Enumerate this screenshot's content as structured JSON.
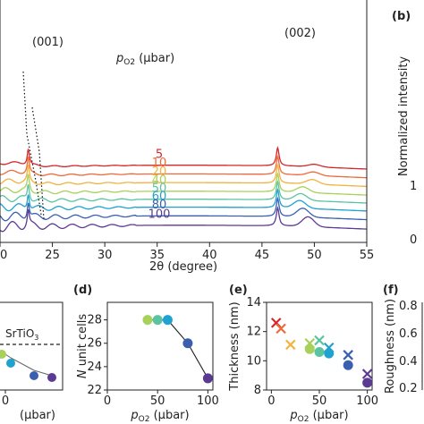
{
  "chart_data": [
    {
      "panel": "a",
      "type": "line",
      "xlabel": "2θ (degree)",
      "ylabel": "",
      "xlim": [
        20,
        55
      ],
      "xticks": [
        20,
        25,
        30,
        35,
        40,
        45,
        50,
        55
      ],
      "legend_title": "p",
      "legend_sub": "O2",
      "legend_unit": " (µbar)",
      "peak_labels": [
        "(001)",
        "(002)"
      ],
      "peak_positions": [
        22.7,
        46.5
      ],
      "series": [
        {
          "name": "5",
          "color": "#d62728",
          "offset": 9.1,
          "satellite": 50.0
        },
        {
          "name": "10",
          "color": "#ef6a3a",
          "offset": 7.9,
          "satellite": 49.9
        },
        {
          "name": "20",
          "color": "#f2b33d",
          "offset": 6.7,
          "satellite": 49.8
        },
        {
          "name": "40",
          "color": "#a7d15a",
          "offset": 5.5,
          "satellite": 48.9
        },
        {
          "name": "50",
          "color": "#5ac4a1",
          "offset": 4.4,
          "satellite": 48.7
        },
        {
          "name": "60",
          "color": "#1fa2d0",
          "offset": 3.3,
          "satellite": 48.6
        },
        {
          "name": "80",
          "color": "#3a5fb0",
          "offset": 2.1,
          "satellite": 48.9
        },
        {
          "name": "100",
          "color": "#5b3a94",
          "offset": 0.8,
          "satellite": 49.4
        }
      ]
    },
    {
      "panel": "b",
      "type": "line",
      "ylabel": "Normalized intensity",
      "yticks": [
        "0",
        "1"
      ]
    },
    {
      "panel": "c",
      "type": "scatter",
      "xlabel": "(µbar)",
      "xticks": [
        "0"
      ],
      "annotation": "SrTiO",
      "annotation_sub": "3"
    },
    {
      "panel": "d",
      "type": "line",
      "xlabel": "p",
      "xlabel_sub": "O2",
      "xlabel_unit": " (µbar)",
      "ylabel_italic": "N",
      "ylabel_rest": " unit cells",
      "xlim": [
        0,
        105
      ],
      "ylim": [
        22,
        29.5
      ],
      "xticks": [
        0,
        50,
        100
      ],
      "yticks": [
        22,
        24,
        26,
        28
      ],
      "x": [
        40,
        50,
        60,
        80,
        100
      ],
      "values": [
        28,
        28,
        28,
        26,
        23
      ],
      "colors": [
        "#a7d15a",
        "#5ac4a1",
        "#1fa2d0",
        "#3a5fb0",
        "#5b3a94"
      ]
    },
    {
      "panel": "e",
      "type": "scatter",
      "xlabel": "p",
      "xlabel_sub": "O2",
      "xlabel_unit": " (µbar)",
      "ylabel": "Thickness (nm)",
      "xlim": [
        -5,
        105
      ],
      "ylim": [
        8,
        14
      ],
      "xticks": [
        0,
        50,
        100
      ],
      "yticks": [
        8,
        10,
        12,
        14
      ],
      "series": [
        {
          "marker": "x",
          "points": [
            [
              5,
              12.6
            ],
            [
              10,
              12.2
            ],
            [
              20,
              11.1
            ],
            [
              40,
              11.2
            ],
            [
              50,
              11.4
            ],
            [
              60,
              10.9
            ],
            [
              80,
              10.4
            ],
            [
              100,
              9.1
            ]
          ]
        },
        {
          "marker": "o",
          "points": [
            [
              40,
              10.8
            ],
            [
              50,
              10.6
            ],
            [
              60,
              10.5
            ],
            [
              80,
              9.7
            ],
            [
              100,
              8.5
            ]
          ]
        }
      ],
      "colors_by_x": {
        "5": "#d62728",
        "10": "#ef6a3a",
        "20": "#f2b33d",
        "40": "#a7d15a",
        "50": "#5ac4a1",
        "60": "#1fa2d0",
        "80": "#3a5fb0",
        "100": "#5b3a94"
      }
    },
    {
      "panel": "f",
      "type": "scatter",
      "ylabel": "Roughness (nm)",
      "yticks": [
        "0.2",
        "0.4",
        "0.6",
        "0.8"
      ]
    }
  ],
  "panel_labels": {
    "b": "(b)",
    "d": "(d)",
    "e": "(e)",
    "f": "(f)"
  },
  "colors": {
    "axis": "#222222",
    "dashed": "#111111"
  }
}
